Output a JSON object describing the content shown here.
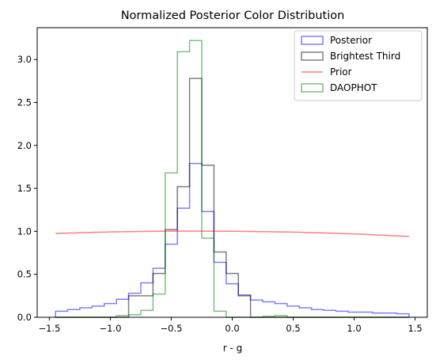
{
  "chart_data": {
    "type": "line",
    "title": "Normalized Posterior Color Distribution",
    "xlabel": "r - g",
    "ylabel": "",
    "xlim": [
      -1.6,
      1.6
    ],
    "ylim": [
      0,
      3.37
    ],
    "xticks": [
      -1.5,
      -1.0,
      -0.5,
      0.0,
      0.5,
      1.0,
      1.5
    ],
    "xtick_labels": [
      "−1.5",
      "−1.0",
      "−0.5",
      "0.0",
      "0.5",
      "1.0",
      "1.5"
    ],
    "yticks": [
      0,
      0.5,
      1.0,
      1.5,
      2.0,
      2.5,
      3.0
    ],
    "ytick_labels": [
      "0.0",
      "0.5",
      "1.0",
      "1.5",
      "2.0",
      "2.5",
      "3.0"
    ],
    "grid": false,
    "legend_position": "top-right",
    "legend": [
      "Posterior",
      "Brightest Third",
      "Prior",
      "DAOPHOT"
    ],
    "bin_edges": [
      -1.45,
      -1.35,
      -1.25,
      -1.15,
      -1.05,
      -0.95,
      -0.85,
      -0.75,
      -0.65,
      -0.55,
      -0.45,
      -0.35,
      -0.25,
      -0.15,
      -0.05,
      0.05,
      0.15,
      0.25,
      0.35,
      0.45,
      0.55,
      0.65,
      0.75,
      0.85,
      0.95,
      1.05,
      1.15,
      1.25,
      1.35,
      1.45
    ],
    "series": [
      {
        "name": "Posterior",
        "kind": "step",
        "color": "#0000ff",
        "values": [
          0.07,
          0.09,
          0.11,
          0.13,
          0.16,
          0.21,
          0.28,
          0.4,
          0.57,
          0.85,
          1.27,
          1.79,
          1.23,
          0.64,
          0.39,
          0.26,
          0.2,
          0.18,
          0.16,
          0.13,
          0.11,
          0.09,
          0.08,
          0.07,
          0.06,
          0.06,
          0.05,
          0.05,
          0.04
        ]
      },
      {
        "name": "Brightest Third",
        "kind": "step",
        "color": "#000000",
        "values": [
          0.0,
          0.0,
          0.0,
          0.0,
          0.0,
          0.0,
          0.25,
          0.25,
          0.51,
          1.02,
          1.52,
          2.78,
          1.77,
          0.76,
          0.51,
          0.25,
          0.0,
          0.0,
          0.0,
          0.0,
          0.0,
          0.0,
          0.0,
          0.0,
          0.0,
          0.0,
          0.0,
          0.0,
          0.0
        ]
      },
      {
        "name": "Prior",
        "kind": "line",
        "color": "#ff0000",
        "x": [
          -1.45,
          -1.2,
          -1.0,
          -0.75,
          -0.5,
          -0.25,
          0.0,
          0.25,
          0.5,
          0.75,
          1.0,
          1.2,
          1.45
        ],
        "values": [
          0.975,
          0.986,
          0.993,
          0.999,
          1.002,
          1.003,
          1.001,
          0.997,
          0.991,
          0.982,
          0.97,
          0.958,
          0.94
        ]
      },
      {
        "name": "DAOPHOT",
        "kind": "step",
        "color": "#008000",
        "values": [
          0.0,
          0.0,
          0.0,
          0.0,
          0.0,
          0.02,
          0.03,
          0.08,
          0.27,
          1.68,
          3.09,
          3.22,
          0.92,
          0.07,
          0.0,
          0.0,
          0.0,
          0.01,
          0.02,
          0.0,
          0.0,
          0.0,
          0.0,
          0.0,
          0.0,
          0.0,
          0.0,
          0.0,
          0.0
        ]
      }
    ]
  }
}
